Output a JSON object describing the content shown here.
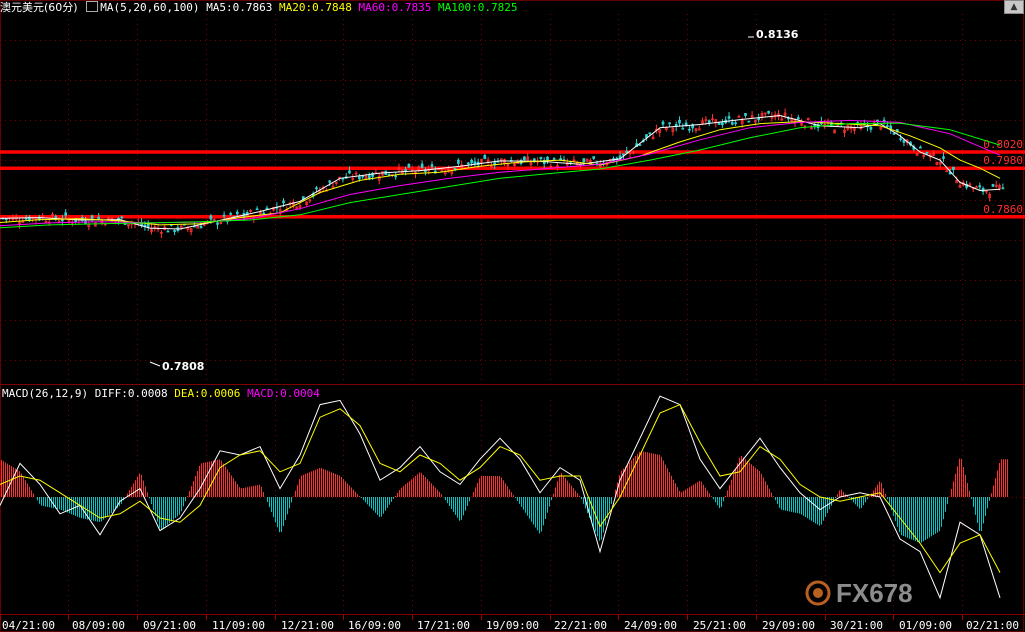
{
  "instrument": "澳元美元(60分)",
  "main_header": {
    "ma_label": "MA(5,20,60,100)",
    "ma5": "MA5:0.7863",
    "ma20": "MA20:0.7848",
    "ma60": "MA60:0.7835",
    "ma100": "MA100:0.7825"
  },
  "macd_header": {
    "label": "MACD(26,12,9)",
    "diff": "DIFF:0.0008",
    "dea": "DEA:0.0006",
    "macd": "MACD:0.0004"
  },
  "watermark": "FX678",
  "colors": {
    "ma5": "#ffffff",
    "ma20": "#ffff00",
    "ma60": "#ff00ff",
    "ma100": "#00ff00",
    "level_line": "#ff0000",
    "up_bar": "#ff3030",
    "down_bar": "#00c8c8"
  },
  "chart_data": [
    {
      "type": "line",
      "panel": "price",
      "y_axis_ticks": [
        "0.8020",
        "0.7980",
        "0.7860"
      ],
      "horizontal_levels": [
        0.802,
        0.798,
        0.786
      ],
      "annotations": [
        {
          "text": "0.8136",
          "kind": "high"
        },
        {
          "text": "0.7808",
          "kind": "low"
        }
      ],
      "x_tick_labels": [
        "04/21:00",
        "08/09:00",
        "09/21:00",
        "11/09:00",
        "12/21:00",
        "16/09:00",
        "17/21:00",
        "19/09:00",
        "22/21:00",
        "24/09:00",
        "25/21:00",
        "29/09:00",
        "30/21:00",
        "01/09:00",
        "02/21:00"
      ],
      "series": [
        {
          "name": "MA5",
          "x": [
            0,
            40,
            80,
            120,
            150,
            180,
            220,
            260,
            300,
            340,
            380,
            420,
            460,
            500,
            540,
            580,
            620,
            660,
            700,
            740,
            780,
            820,
            860,
            880,
            900,
            920,
            940,
            960,
            980,
            1000
          ],
          "y": [
            0.7856,
            0.7858,
            0.7852,
            0.7853,
            0.7832,
            0.783,
            0.7851,
            0.7873,
            0.7898,
            0.7955,
            0.7968,
            0.7974,
            0.7985,
            0.7998,
            0.7997,
            0.799,
            0.8003,
            0.808,
            0.8088,
            0.81,
            0.811,
            0.8085,
            0.808,
            0.809,
            0.806,
            0.802,
            0.8,
            0.7945,
            0.7925,
            0.7928
          ]
        },
        {
          "name": "MA20",
          "x": [
            0,
            40,
            80,
            120,
            160,
            200,
            240,
            280,
            320,
            360,
            400,
            440,
            480,
            520,
            560,
            600,
            640,
            680,
            720,
            760,
            800,
            840,
            880,
            910,
            940,
            960,
            980,
            1000
          ],
          "y": [
            0.7846,
            0.7853,
            0.7855,
            0.785,
            0.784,
            0.7843,
            0.7858,
            0.787,
            0.792,
            0.795,
            0.7965,
            0.797,
            0.7985,
            0.7995,
            0.8,
            0.7988,
            0.801,
            0.8045,
            0.8075,
            0.809,
            0.8095,
            0.809,
            0.8085,
            0.806,
            0.803,
            0.8,
            0.798,
            0.7955
          ]
        },
        {
          "name": "MA60",
          "x": [
            0,
            50,
            100,
            150,
            200,
            250,
            300,
            350,
            400,
            450,
            500,
            550,
            600,
            650,
            700,
            750,
            800,
            850,
            900,
            950,
            1000
          ],
          "y": [
            0.7838,
            0.7845,
            0.7848,
            0.7845,
            0.7847,
            0.7855,
            0.788,
            0.7915,
            0.7937,
            0.7955,
            0.797,
            0.798,
            0.799,
            0.8015,
            0.805,
            0.808,
            0.8093,
            0.8098,
            0.8093,
            0.8065,
            0.8012
          ]
        },
        {
          "name": "MA100",
          "x": [
            0,
            50,
            100,
            150,
            200,
            250,
            300,
            350,
            400,
            450,
            500,
            550,
            600,
            650,
            700,
            750,
            800,
            850,
            900,
            950,
            1000
          ],
          "y": [
            0.7833,
            0.784,
            0.7843,
            0.7845,
            0.7848,
            0.7852,
            0.7865,
            0.7895,
            0.7915,
            0.7935,
            0.7955,
            0.7967,
            0.7978,
            0.8,
            0.8025,
            0.8055,
            0.808,
            0.809,
            0.8091,
            0.8075,
            0.8037
          ]
        }
      ]
    },
    {
      "type": "bar",
      "panel": "macd",
      "series": [
        {
          "name": "DIFF",
          "x": [
            0,
            20,
            40,
            60,
            80,
            100,
            120,
            140,
            160,
            180,
            200,
            220,
            240,
            260,
            280,
            300,
            320,
            340,
            360,
            380,
            400,
            420,
            440,
            460,
            480,
            500,
            520,
            540,
            560,
            580,
            600,
            620,
            640,
            660,
            680,
            700,
            720,
            740,
            760,
            780,
            800,
            820,
            840,
            860,
            880,
            900,
            920,
            940,
            960,
            980,
            1000
          ],
          "y": [
            -0.2,
            0.8,
            0.3,
            -0.4,
            -0.2,
            -0.9,
            -0.1,
            0.2,
            -0.8,
            -0.5,
            0.2,
            1.1,
            1.0,
            1.2,
            0.2,
            1.0,
            2.2,
            2.3,
            1.5,
            0.4,
            0.7,
            1.2,
            0.6,
            0.3,
            0.9,
            1.4,
            0.9,
            0.1,
            0.7,
            0.4,
            -1.3,
            0.4,
            1.4,
            2.4,
            2.2,
            0.9,
            0.2,
            0.8,
            1.4,
            0.7,
            0.1,
            -0.3,
            0.0,
            0.1,
            0.0,
            -1.0,
            -1.3,
            -2.4,
            -0.6,
            -0.9,
            -2.4
          ]
        },
        {
          "name": "DEA",
          "x": [
            0,
            20,
            40,
            60,
            80,
            100,
            120,
            140,
            160,
            180,
            200,
            220,
            240,
            260,
            280,
            300,
            320,
            340,
            360,
            380,
            400,
            420,
            440,
            460,
            480,
            500,
            520,
            540,
            560,
            580,
            600,
            620,
            640,
            660,
            680,
            700,
            720,
            740,
            760,
            780,
            800,
            820,
            840,
            860,
            880,
            900,
            920,
            940,
            960,
            980,
            1000
          ],
          "y": [
            0.3,
            0.5,
            0.4,
            0.1,
            -0.2,
            -0.5,
            -0.4,
            -0.1,
            -0.5,
            -0.6,
            -0.2,
            0.7,
            1.0,
            1.1,
            0.6,
            0.8,
            1.9,
            2.1,
            1.7,
            0.8,
            0.6,
            1.0,
            0.8,
            0.4,
            0.7,
            1.2,
            1.0,
            0.4,
            0.5,
            0.5,
            -0.7,
            0.0,
            1.0,
            2.0,
            2.2,
            1.3,
            0.5,
            0.6,
            1.2,
            0.9,
            0.3,
            0.0,
            -0.1,
            0.0,
            0.1,
            -0.5,
            -1.1,
            -1.8,
            -1.1,
            -0.9,
            -1.8
          ]
        },
        {
          "name": "MACD",
          "x": [
            0,
            20,
            40,
            60,
            80,
            100,
            120,
            140,
            160,
            180,
            200,
            220,
            240,
            260,
            280,
            300,
            320,
            340,
            360,
            380,
            400,
            420,
            440,
            460,
            480,
            500,
            520,
            540,
            560,
            580,
            600,
            620,
            640,
            660,
            680,
            700,
            720,
            740,
            760,
            780,
            800,
            820,
            840,
            860,
            880,
            900,
            920,
            940,
            960,
            980,
            1000
          ],
          "y": [
            0.9,
            0.6,
            -0.2,
            -0.3,
            -0.5,
            -0.6,
            -0.2,
            0.6,
            -0.8,
            -0.4,
            0.8,
            0.9,
            0.2,
            0.3,
            -0.9,
            0.5,
            0.7,
            0.5,
            0.0,
            -0.5,
            0.2,
            0.6,
            0.1,
            -0.6,
            0.5,
            0.5,
            -0.2,
            -0.9,
            0.6,
            0.0,
            -1.1,
            0.6,
            1.1,
            1.0,
            0.1,
            0.4,
            -0.3,
            1.0,
            0.6,
            -0.3,
            -0.4,
            -0.7,
            0.2,
            -0.3,
            0.4,
            -0.9,
            -1.1,
            -0.8,
            1.0,
            -0.9,
            0.9
          ]
        }
      ]
    }
  ]
}
